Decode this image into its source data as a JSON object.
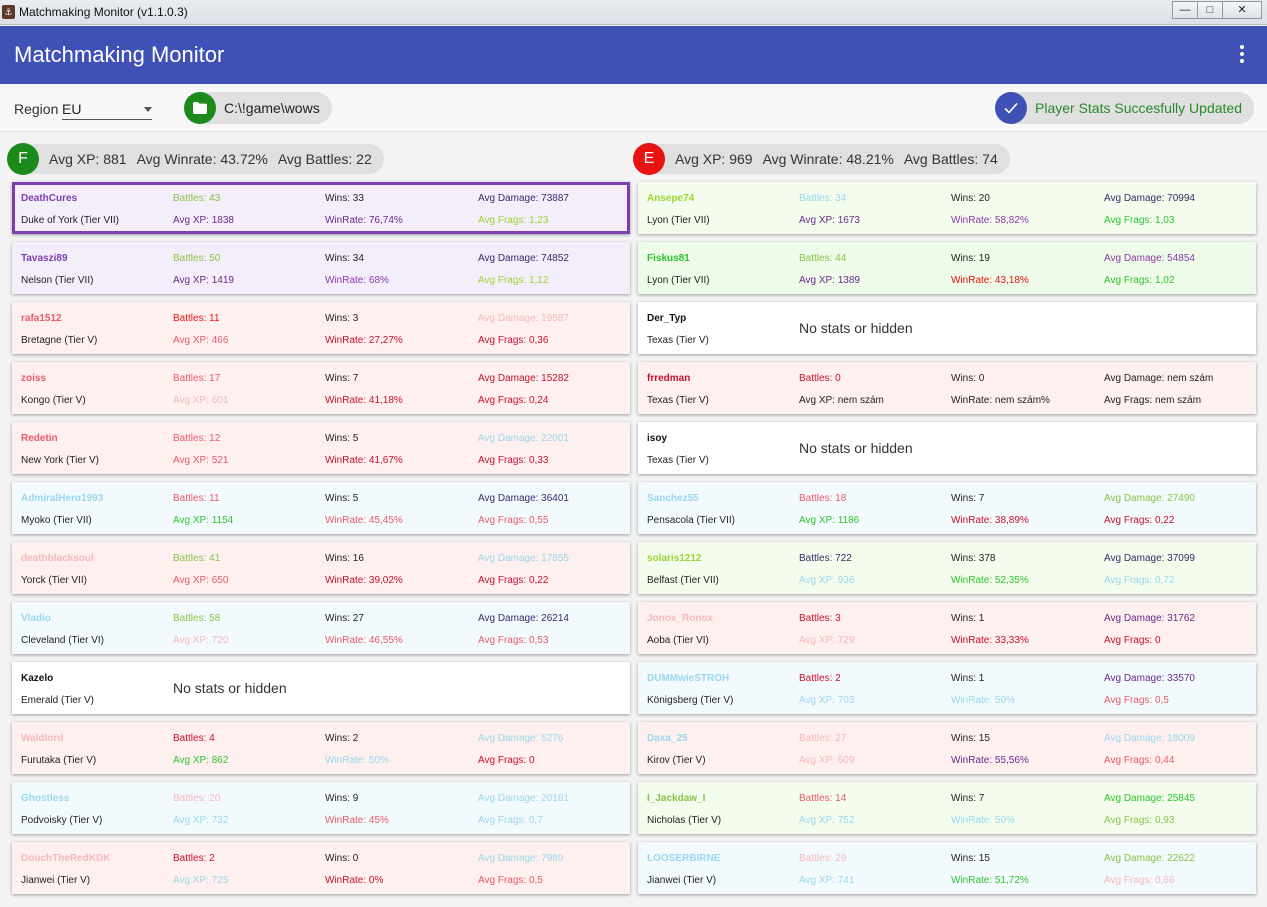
{
  "window": {
    "title": "Matchmaking Monitor (v1.1.0.3)",
    "minimize": "—",
    "maximize": "□",
    "close": "✕"
  },
  "appbar": {
    "title": "Matchmaking Monitor"
  },
  "toolbar": {
    "region_label": "Region",
    "region_value": "EU",
    "path": "C:\\!game\\wows",
    "status": "Player Stats Succesfully Updated"
  },
  "colors": {
    "primary": "#3f51b5",
    "friendly": "#1b8a1b",
    "enemy": "#e81313",
    "status_blue": "#3f51b5",
    "status_text": "#2a8a2a"
  },
  "friendly": {
    "badge": "F",
    "avg_xp": "Avg XP: 881",
    "avg_winrate": "Avg Winrate: 43.72%",
    "avg_battles": "Avg Battles: 22",
    "players": [
      {
        "name": "DeathCures",
        "ship": "Duke of York (Tier VII)",
        "bg": "#f4eefa",
        "selected": true,
        "battles": "Battles: 43",
        "wins": "Wins: 33",
        "dmg": "Avg Damage: 73887",
        "xp": "Avg XP: 1838",
        "wr": "WinRate: 76,74%",
        "frags": "Avg Frags: 1,23",
        "c": {
          "name": "#7e3fae",
          "battles": "#8bc34a",
          "wins": "#222",
          "dmg": "#3a2a6a",
          "xp": "#6a2a8a",
          "wr": "#6a2a8a",
          "frags": "#9bd630"
        }
      },
      {
        "name": "Tavaszi89",
        "ship": "Nelson (Tier VII)",
        "bg": "#f4eefa",
        "battles": "Battles: 50",
        "wins": "Wins: 34",
        "dmg": "Avg Damage: 74852",
        "xp": "Avg XP: 1419",
        "wr": "WinRate: 68%",
        "frags": "Avg Frags: 1,12",
        "c": {
          "name": "#7e3fae",
          "battles": "#8bc34a",
          "wins": "#222",
          "dmg": "#3a2a6a",
          "xp": "#6a2a8a",
          "wr": "#8a3aa8",
          "frags": "#9bd630"
        }
      },
      {
        "name": "rafa1512",
        "ship": "Bretagne (Tier V)",
        "bg": "#fff0f0",
        "battles": "Battles: 11",
        "wins": "Wins: 3",
        "dmg": "Avg Damage: 19587",
        "xp": "Avg XP: 466",
        "wr": "WinRate: 27,27%",
        "frags": "Avg Frags: 0,36",
        "c": {
          "name": "#e85a6a",
          "battles": "#e81313",
          "wins": "#222",
          "dmg": "#f5b8be",
          "xp": "#e85a6a",
          "wr": "#c8102e",
          "frags": "#c8102e"
        }
      },
      {
        "name": "zoiss",
        "ship": "Kongo (Tier V)",
        "bg": "#fff0f0",
        "battles": "Battles: 17",
        "wins": "Wins: 7",
        "dmg": "Avg Damage: 15282",
        "xp": "Avg XP: 601",
        "wr": "WinRate: 41,18%",
        "frags": "Avg Frags: 0,24",
        "c": {
          "name": "#e85a6a",
          "battles": "#e85a6a",
          "wins": "#222",
          "dmg": "#c8102e",
          "xp": "#f5b8be",
          "wr": "#c8102e",
          "frags": "#c8102e"
        }
      },
      {
        "name": "Redetin",
        "ship": "New York (Tier V)",
        "bg": "#fff0f0",
        "battles": "Battles: 12",
        "wins": "Wins: 5",
        "dmg": "Avg Damage: 22001",
        "xp": "Avg XP: 521",
        "wr": "WinRate: 41,67%",
        "frags": "Avg Frags: 0,33",
        "c": {
          "name": "#e85a6a",
          "battles": "#e85a6a",
          "wins": "#222",
          "dmg": "#9ad7ee",
          "xp": "#e85a6a",
          "wr": "#c8102e",
          "frags": "#c8102e"
        }
      },
      {
        "name": "AdmiralHero1993",
        "ship": "Myoko (Tier VII)",
        "bg": "#f3fafd",
        "battles": "Battles: 11",
        "wins": "Wins: 5",
        "dmg": "Avg Damage: 36401",
        "xp": "Avg XP: 1154",
        "wr": "WinRate: 45,45%",
        "frags": "Avg Frags: 0,55",
        "c": {
          "name": "#9ad7ee",
          "battles": "#e85a6a",
          "wins": "#222",
          "dmg": "#3a2a6a",
          "xp": "#2ec42e",
          "wr": "#e85a6a",
          "frags": "#e85a6a"
        }
      },
      {
        "name": "deathblacksoul",
        "ship": "Yorck (Tier VII)",
        "bg": "#fff0f0",
        "battles": "Battles: 41",
        "wins": "Wins: 16",
        "dmg": "Avg Damage: 17855",
        "xp": "Avg XP: 650",
        "wr": "WinRate: 39,02%",
        "frags": "Avg Frags: 0,22",
        "c": {
          "name": "#f5b8be",
          "battles": "#8bc34a",
          "wins": "#222",
          "dmg": "#9ad7ee",
          "xp": "#e85a6a",
          "wr": "#c8102e",
          "frags": "#c8102e"
        }
      },
      {
        "name": "Vladio",
        "ship": "Cleveland (Tier VI)",
        "bg": "#f3fafd",
        "battles": "Battles: 58",
        "wins": "Wins: 27",
        "dmg": "Avg Damage: 26214",
        "xp": "Avg XP: 720",
        "wr": "WinRate: 46,55%",
        "frags": "Avg Frags: 0,53",
        "c": {
          "name": "#9ad7ee",
          "battles": "#8bc34a",
          "wins": "#222",
          "dmg": "#3a2a6a",
          "xp": "#f5b8be",
          "wr": "#e85a6a",
          "frags": "#e85a6a"
        }
      },
      {
        "name": "Kazelo",
        "ship": "Emerald (Tier V)",
        "bg": "#ffffff",
        "hidden": true,
        "nostats": "No stats or hidden",
        "c": {
          "name": "#111"
        }
      },
      {
        "name": "Waldlord",
        "ship": "Furutaka (Tier V)",
        "bg": "#fff0f0",
        "battles": "Battles: 4",
        "wins": "Wins: 2",
        "dmg": "Avg Damage: 5276",
        "xp": "Avg XP: 862",
        "wr": "WinRate: 50%",
        "frags": "Avg Frags: 0",
        "c": {
          "name": "#f5b8be",
          "battles": "#c8102e",
          "wins": "#222",
          "dmg": "#9ad7ee",
          "xp": "#2ec42e",
          "wr": "#9ad7ee",
          "frags": "#c8102e"
        }
      },
      {
        "name": "Ghostless",
        "ship": "Podvoisky (Tier V)",
        "bg": "#f3fafd",
        "battles": "Battles: 20",
        "wins": "Wins: 9",
        "dmg": "Avg Damage: 20181",
        "xp": "Avg XP: 732",
        "wr": "WinRate: 45%",
        "frags": "Avg Frags: 0,7",
        "c": {
          "name": "#9ad7ee",
          "battles": "#f5b8be",
          "wins": "#222",
          "dmg": "#9ad7ee",
          "xp": "#9ad7ee",
          "wr": "#e85a6a",
          "frags": "#9ad7ee"
        }
      },
      {
        "name": "DouchTheRedKDK",
        "ship": "Jianwei (Tier V)",
        "bg": "#fff0f0",
        "battles": "Battles: 2",
        "wins": "Wins: 0",
        "dmg": "Avg Damage: 7980",
        "xp": "Avg XP: 725",
        "wr": "WinRate: 0%",
        "frags": "Avg Frags: 0,5",
        "c": {
          "name": "#f5b8be",
          "battles": "#c8102e",
          "wins": "#222",
          "dmg": "#9ad7ee",
          "xp": "#9ad7ee",
          "wr": "#c8102e",
          "frags": "#e85a6a"
        }
      }
    ]
  },
  "enemy": {
    "badge": "E",
    "avg_xp": "Avg XP: 969",
    "avg_winrate": "Avg Winrate: 48.21%",
    "avg_battles": "Avg Battles: 74",
    "players": [
      {
        "name": "Ansepe74",
        "ship": "Lyon (Tier VII)",
        "bg": "#f3fced",
        "battles": "Battles: 34",
        "wins": "Wins: 20",
        "dmg": "Avg Damage: 70994",
        "xp": "Avg XP: 1673",
        "wr": "WinRate: 58,82%",
        "frags": "Avg Frags: 1,03",
        "c": {
          "name": "#9bd630",
          "battles": "#9ad7ee",
          "wins": "#222",
          "dmg": "#3a2a6a",
          "xp": "#6a2a8a",
          "wr": "#8a3aa8",
          "frags": "#2ec42e"
        }
      },
      {
        "name": "Fiskus81",
        "ship": "Lyon (Tier VII)",
        "bg": "#edfbe8",
        "battles": "Battles: 44",
        "wins": "Wins: 19",
        "dmg": "Avg Damage: 54854",
        "xp": "Avg XP: 1389",
        "wr": "WinRate: 43,18%",
        "frags": "Avg Frags: 1,02",
        "c": {
          "name": "#2ec42e",
          "battles": "#8bc34a",
          "wins": "#222",
          "dmg": "#8a3aa8",
          "xp": "#6a2a8a",
          "wr": "#e81313",
          "frags": "#2ec42e"
        }
      },
      {
        "name": "Der_Typ",
        "ship": "Texas (Tier V)",
        "bg": "#ffffff",
        "hidden": true,
        "nostats": "No stats or hidden",
        "c": {
          "name": "#111"
        }
      },
      {
        "name": "frredman",
        "ship": "Texas (Tier V)",
        "bg": "#fff0f0",
        "battles": "Battles: 0",
        "wins": "Wins: 0",
        "dmg": "Avg Damage: nem szám",
        "xp": "Avg XP: nem szám",
        "wr": "WinRate: nem szám%",
        "frags": "Avg Frags: nem szám",
        "c": {
          "name": "#c8102e",
          "battles": "#c8102e",
          "wins": "#222",
          "dmg": "#222",
          "xp": "#222",
          "wr": "#222",
          "frags": "#222"
        }
      },
      {
        "name": "isoy",
        "ship": "Texas (Tier V)",
        "bg": "#ffffff",
        "hidden": true,
        "nostats": "No stats or hidden",
        "c": {
          "name": "#111"
        }
      },
      {
        "name": "Sanchez55",
        "ship": "Pensacola (Tier VII)",
        "bg": "#f3fafd",
        "battles": "Battles: 18",
        "wins": "Wins: 7",
        "dmg": "Avg Damage: 27490",
        "xp": "Avg XP: 1186",
        "wr": "WinRate: 38,89%",
        "frags": "Avg Frags: 0,22",
        "c": {
          "name": "#9ad7ee",
          "battles": "#e85a6a",
          "wins": "#222",
          "dmg": "#8bc34a",
          "xp": "#2ec42e",
          "wr": "#c8102e",
          "frags": "#c8102e"
        }
      },
      {
        "name": "solaris1212",
        "ship": "Belfast (Tier VII)",
        "bg": "#f3fced",
        "battles": "Battles: 722",
        "wins": "Wins: 378",
        "dmg": "Avg Damage: 37099",
        "xp": "Avg XP: 936",
        "wr": "WinRate: 52,35%",
        "frags": "Avg Frags: 0,72",
        "c": {
          "name": "#9bd630",
          "battles": "#3a2a6a",
          "wins": "#222",
          "dmg": "#3a2a6a",
          "xp": "#9ad7ee",
          "wr": "#2ec42e",
          "frags": "#9ad7ee"
        }
      },
      {
        "name": "Jonox_Ronox",
        "ship": "Aoba (Tier VI)",
        "bg": "#fff0f0",
        "battles": "Battles: 3",
        "wins": "Wins: 1",
        "dmg": "Avg Damage: 31762",
        "xp": "Avg XP: 729",
        "wr": "WinRate: 33,33%",
        "frags": "Avg Frags: 0",
        "c": {
          "name": "#f5b8be",
          "battles": "#c8102e",
          "wins": "#222",
          "dmg": "#6a2a8a",
          "xp": "#f5b8be",
          "wr": "#c8102e",
          "frags": "#c8102e"
        }
      },
      {
        "name": "DUMMwieSTROH",
        "ship": "Königsberg (Tier V)",
        "bg": "#f3fafd",
        "battles": "Battles: 2",
        "wins": "Wins: 1",
        "dmg": "Avg Damage: 33570",
        "xp": "Avg XP: 703",
        "wr": "WinRate: 50%",
        "frags": "Avg Frags: 0,5",
        "c": {
          "name": "#9ad7ee",
          "battles": "#c8102e",
          "wins": "#222",
          "dmg": "#6a2a8a",
          "xp": "#9ad7ee",
          "wr": "#9ad7ee",
          "frags": "#e85a6a"
        }
      },
      {
        "name": "Daxa_25",
        "ship": "Kirov (Tier V)",
        "bg": "#fff0f0",
        "battles": "Battles: 27",
        "wins": "Wins: 15",
        "dmg": "Avg Damage: 18009",
        "xp": "Avg XP: 609",
        "wr": "WinRate: 55,56%",
        "frags": "Avg Frags: 0,44",
        "c": {
          "name": "#9ad7ee",
          "battles": "#f5b8be",
          "wins": "#222",
          "dmg": "#9ad7ee",
          "xp": "#f5b8be",
          "wr": "#6a2a8a",
          "frags": "#e85a6a"
        }
      },
      {
        "name": "I_Jackdaw_I",
        "ship": "Nicholas (Tier V)",
        "bg": "#f3fced",
        "battles": "Battles: 14",
        "wins": "Wins: 7",
        "dmg": "Avg Damage: 25845",
        "xp": "Avg XP: 752",
        "wr": "WinRate: 50%",
        "frags": "Avg Frags: 0,93",
        "c": {
          "name": "#8bc34a",
          "battles": "#e85a6a",
          "wins": "#222",
          "dmg": "#2ec42e",
          "xp": "#9ad7ee",
          "wr": "#9ad7ee",
          "frags": "#8bc34a"
        }
      },
      {
        "name": "LOOSERBIRNE",
        "ship": "Jianwei (Tier V)",
        "bg": "#f3fafd",
        "battles": "Battles: 29",
        "wins": "Wins: 15",
        "dmg": "Avg Damage: 22622",
        "xp": "Avg XP: 741",
        "wr": "WinRate: 51,72%",
        "frags": "Avg Frags: 0,66",
        "c": {
          "name": "#9ad7ee",
          "battles": "#f5b8be",
          "wins": "#222",
          "dmg": "#8bc34a",
          "xp": "#9ad7ee",
          "wr": "#2ec42e",
          "frags": "#f5b8be"
        }
      }
    ]
  }
}
